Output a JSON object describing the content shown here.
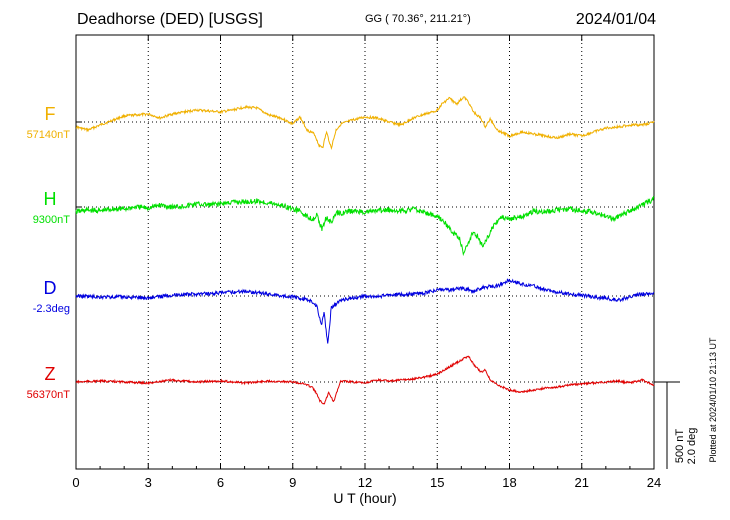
{
  "header": {
    "station": "Deadhorse (DED)  [USGS]",
    "coords": "GG ( 70.36°, 211.21°)",
    "date": "2024/01/04"
  },
  "footer": {
    "plotted": "Plotted at 2024/01/10 21:13 UT"
  },
  "chart_data": {
    "type": "line",
    "title": "Deadhorse (DED)  [USGS]",
    "xlabel": "U T (hour)",
    "ylabel": "",
    "xlim": [
      0,
      24
    ],
    "x_ticks": [
      "0",
      "3",
      "6",
      "9",
      "12",
      "15",
      "18",
      "21",
      "24"
    ],
    "grid": true,
    "scale_bar": {
      "value_nT": "500 nT",
      "value_deg": "2.0 deg"
    },
    "series": [
      {
        "name": "F",
        "baseline_label": "57140nT",
        "color": "#f0b000",
        "offset_units": 0,
        "points": [
          [
            0,
            5
          ],
          [
            0.5,
            8
          ],
          [
            1,
            3
          ],
          [
            2,
            -6
          ],
          [
            3,
            -8
          ],
          [
            3.5,
            -4
          ],
          [
            4,
            -8
          ],
          [
            5,
            -12
          ],
          [
            6,
            -10
          ],
          [
            6.5,
            -12
          ],
          [
            7,
            -15
          ],
          [
            7.5,
            -14
          ],
          [
            8,
            -7
          ],
          [
            8.5,
            -4
          ],
          [
            9,
            2
          ],
          [
            9.3,
            -5
          ],
          [
            9.6,
            8
          ],
          [
            9.9,
            12
          ],
          [
            10.1,
            24
          ],
          [
            10.25,
            25
          ],
          [
            10.4,
            10
          ],
          [
            10.6,
            26
          ],
          [
            10.8,
            8
          ],
          [
            11,
            2
          ],
          [
            11.5,
            -2
          ],
          [
            12,
            -5
          ],
          [
            12.5,
            -4
          ],
          [
            13,
            0
          ],
          [
            13.5,
            3
          ],
          [
            14,
            -4
          ],
          [
            14.5,
            -8
          ],
          [
            14.8,
            -10
          ],
          [
            15,
            -12
          ],
          [
            15.2,
            -18
          ],
          [
            15.5,
            -24
          ],
          [
            15.8,
            -18
          ],
          [
            16.1,
            -25
          ],
          [
            16.3,
            -20
          ],
          [
            16.5,
            -10
          ],
          [
            16.8,
            -4
          ],
          [
            17,
            5
          ],
          [
            17.2,
            -3
          ],
          [
            17.5,
            8
          ],
          [
            18,
            14
          ],
          [
            18.5,
            10
          ],
          [
            19,
            12
          ],
          [
            19.5,
            14
          ],
          [
            20,
            16
          ],
          [
            20.5,
            12
          ],
          [
            21,
            14
          ],
          [
            21.5,
            10
          ],
          [
            22,
            6
          ],
          [
            22.5,
            5
          ],
          [
            23,
            3
          ],
          [
            23.5,
            3
          ],
          [
            24,
            0
          ]
        ]
      },
      {
        "name": "H",
        "baseline_label": "9300nT",
        "color": "#00e000",
        "offset_units": 0,
        "points": [
          [
            0,
            5
          ],
          [
            0.5,
            3
          ],
          [
            1,
            4
          ],
          [
            1.5,
            2
          ],
          [
            2,
            2
          ],
          [
            2.5,
            0
          ],
          [
            3,
            1
          ],
          [
            3.5,
            -2
          ],
          [
            4,
            0
          ],
          [
            4.5,
            -1
          ],
          [
            5,
            -3
          ],
          [
            5.5,
            -2
          ],
          [
            6,
            -3
          ],
          [
            6.5,
            -5
          ],
          [
            7,
            -5
          ],
          [
            7.5,
            -6
          ],
          [
            8,
            -4
          ],
          [
            8.5,
            -2
          ],
          [
            9,
            2
          ],
          [
            9.3,
            4
          ],
          [
            9.5,
            8
          ],
          [
            9.8,
            12
          ],
          [
            10,
            8
          ],
          [
            10.2,
            22
          ],
          [
            10.4,
            10
          ],
          [
            10.6,
            16
          ],
          [
            10.8,
            6
          ],
          [
            11,
            6
          ],
          [
            11.5,
            4
          ],
          [
            12,
            5
          ],
          [
            12.5,
            4
          ],
          [
            13,
            3
          ],
          [
            13.5,
            4
          ],
          [
            14,
            2
          ],
          [
            14.3,
            4
          ],
          [
            14.6,
            6
          ],
          [
            15,
            10
          ],
          [
            15.3,
            15
          ],
          [
            15.6,
            25
          ],
          [
            15.9,
            30
          ],
          [
            16.1,
            47
          ],
          [
            16.3,
            35
          ],
          [
            16.5,
            25
          ],
          [
            16.7,
            30
          ],
          [
            16.9,
            40
          ],
          [
            17.1,
            30
          ],
          [
            17.3,
            20
          ],
          [
            17.6,
            10
          ],
          [
            18,
            12
          ],
          [
            18.5,
            10
          ],
          [
            19,
            4
          ],
          [
            19.5,
            5
          ],
          [
            20,
            3
          ],
          [
            20.5,
            2
          ],
          [
            21,
            4
          ],
          [
            21.5,
            5
          ],
          [
            22,
            8
          ],
          [
            22.3,
            12
          ],
          [
            22.6,
            8
          ],
          [
            23,
            4
          ],
          [
            23.5,
            -2
          ],
          [
            24,
            -8
          ]
        ]
      },
      {
        "name": "D",
        "baseline_label": "-2.3deg",
        "color": "#0000e0",
        "offset_units": 0,
        "points": [
          [
            0,
            0
          ],
          [
            1,
            1
          ],
          [
            2,
            1
          ],
          [
            3,
            2
          ],
          [
            4,
            -1
          ],
          [
            5,
            -2
          ],
          [
            6,
            -3
          ],
          [
            7,
            -5
          ],
          [
            8,
            -2
          ],
          [
            9,
            1
          ],
          [
            9.5,
            3
          ],
          [
            9.8,
            6
          ],
          [
            10,
            10
          ],
          [
            10.2,
            30
          ],
          [
            10.3,
            15
          ],
          [
            10.45,
            49
          ],
          [
            10.6,
            12
          ],
          [
            10.8,
            8
          ],
          [
            11,
            4
          ],
          [
            11.5,
            2
          ],
          [
            12,
            0
          ],
          [
            12.5,
            1
          ],
          [
            13,
            -1
          ],
          [
            14,
            -2
          ],
          [
            14.5,
            -3
          ],
          [
            15,
            -6
          ],
          [
            15.5,
            -6
          ],
          [
            16,
            -8
          ],
          [
            16.5,
            -5
          ],
          [
            17,
            -9
          ],
          [
            17.5,
            -10
          ],
          [
            18,
            -16
          ],
          [
            18.5,
            -12
          ],
          [
            19,
            -10
          ],
          [
            19.5,
            -6
          ],
          [
            20,
            -4
          ],
          [
            20.5,
            -2
          ],
          [
            21,
            -1
          ],
          [
            21.5,
            1
          ],
          [
            22,
            2
          ],
          [
            22.4,
            4
          ],
          [
            22.7,
            3
          ],
          [
            23,
            1
          ],
          [
            23.5,
            -2
          ],
          [
            24,
            -3
          ]
        ]
      },
      {
        "name": "Z",
        "baseline_label": "56370nT",
        "color": "#e00000",
        "offset_units": 0,
        "points": [
          [
            0,
            0
          ],
          [
            1,
            -1
          ],
          [
            2,
            0
          ],
          [
            3,
            1
          ],
          [
            4,
            -2
          ],
          [
            5,
            0
          ],
          [
            6,
            -1
          ],
          [
            7,
            1
          ],
          [
            8,
            -1
          ],
          [
            9,
            0
          ],
          [
            9.5,
            2
          ],
          [
            9.8,
            5
          ],
          [
            10,
            12
          ],
          [
            10.1,
            18
          ],
          [
            10.3,
            22
          ],
          [
            10.5,
            10
          ],
          [
            10.7,
            20
          ],
          [
            10.9,
            5
          ],
          [
            11,
            -1
          ],
          [
            11.5,
            0
          ],
          [
            12,
            1
          ],
          [
            12.5,
            -2
          ],
          [
            13,
            -1
          ],
          [
            14,
            -3
          ],
          [
            14.5,
            -5
          ],
          [
            15,
            -8
          ],
          [
            15.5,
            -15
          ],
          [
            16,
            -22
          ],
          [
            16.3,
            -26
          ],
          [
            16.5,
            -18
          ],
          [
            16.8,
            -10
          ],
          [
            17,
            -12
          ],
          [
            17.2,
            -2
          ],
          [
            17.5,
            3
          ],
          [
            18,
            8
          ],
          [
            18.5,
            10
          ],
          [
            19,
            8
          ],
          [
            19.5,
            6
          ],
          [
            20,
            5
          ],
          [
            20.5,
            3
          ],
          [
            21,
            2
          ],
          [
            21.5,
            1
          ],
          [
            22,
            0
          ],
          [
            22.5,
            -1
          ],
          [
            23,
            1
          ],
          [
            23.5,
            -2
          ],
          [
            24,
            3
          ]
        ]
      }
    ]
  }
}
